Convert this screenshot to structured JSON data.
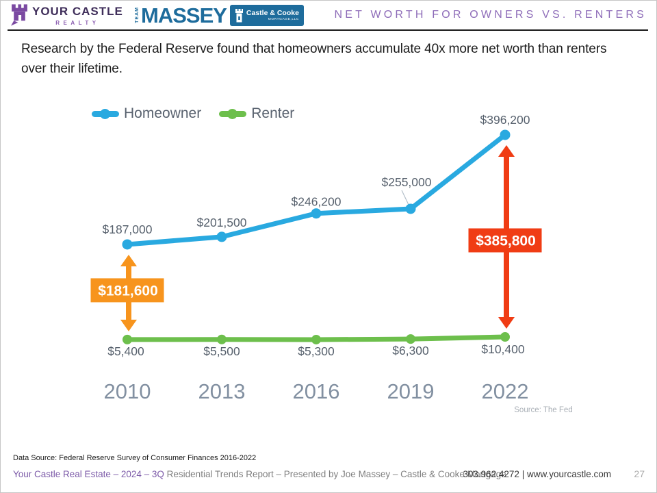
{
  "header": {
    "brand_your_castle": {
      "name": "YOUR CASTLE",
      "sub": "REALTY"
    },
    "brand_massey": {
      "team": "TEAM",
      "name": "MASSEY",
      "badge_line1": "Castle & Cooke",
      "badge_line2": "MORTGAGE,LLC"
    },
    "title": "NET WORTH FOR OWNERS VS. RENTERS"
  },
  "intro": {
    "line1": "Research by the Federal Reserve found that homeowners accumulate 40x more net worth than renters",
    "line2": "over their lifetime."
  },
  "chart_data": {
    "type": "line",
    "categories": [
      "2010",
      "2013",
      "2016",
      "2019",
      "2022"
    ],
    "series": [
      {
        "name": "Homeowner",
        "color": "#29A9E0",
        "values": [
          187000,
          201500,
          246200,
          255000,
          396200
        ],
        "labels": [
          "$187,000",
          "$201,500",
          "$246,200",
          "$255,000",
          "$396,200"
        ]
      },
      {
        "name": "Renter",
        "color": "#6DBF4C",
        "values": [
          5400,
          5500,
          5300,
          6300,
          10400
        ],
        "labels": [
          "$5,400",
          "$5,500",
          "$5,300",
          "$6,300",
          "$10,400"
        ]
      }
    ],
    "annotations": [
      {
        "year": "2010",
        "value": 181600,
        "label": "$181,600",
        "color": "#F7941D"
      },
      {
        "year": "2022",
        "value": 385800,
        "label": "$385,800",
        "color": "#F03C14"
      }
    ],
    "source_note": "Source: The Fed",
    "legend_position": "top-left",
    "grid": false,
    "ylim": [
      0,
      420000
    ],
    "title": "",
    "xlabel": "",
    "ylabel": ""
  },
  "footer": {
    "data_source": "Data Source: Federal Reserve Survey of Consumer Finances 2016-2022",
    "credit_highlight": "Your Castle Real Estate – 2024 – 3Q",
    "credit_rest": " Residential Trends Report – Presented by Joe Massey – Castle & Cooke Mortgage",
    "contact": "303.962.4272 | www.yourcastle.com",
    "page_number": "27"
  },
  "colors": {
    "title_purple": "#8D6BB8",
    "brand_purple": "#7B4AA2",
    "massey_blue": "#1E6C9C",
    "homeowner_blue": "#29A9E0",
    "renter_green": "#6DBF4C",
    "gap_orange": "#F7941D",
    "gap_red": "#F03C14",
    "axis_gray": "#8290A1"
  }
}
